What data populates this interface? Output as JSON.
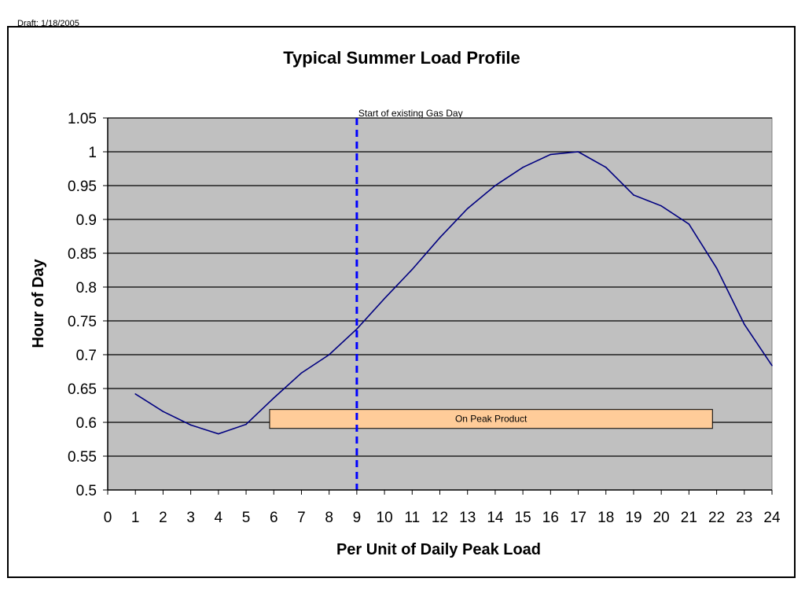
{
  "header": {
    "draft_label": "Draft: 1/18/2005"
  },
  "chart_data": {
    "type": "line",
    "title": "Typical Summer Load Profile",
    "xlabel": "Per Unit of Daily Peak Load",
    "ylabel": "Hour of Day",
    "xlim": [
      0,
      24
    ],
    "ylim": [
      0.5,
      1.05
    ],
    "x_ticks": [
      0,
      1,
      2,
      3,
      4,
      5,
      6,
      7,
      8,
      9,
      10,
      11,
      12,
      13,
      14,
      15,
      16,
      17,
      18,
      19,
      20,
      21,
      22,
      23,
      24
    ],
    "y_ticks": [
      0.5,
      0.55,
      0.6,
      0.65,
      0.7,
      0.75,
      0.8,
      0.85,
      0.9,
      0.95,
      1,
      1.05
    ],
    "y_tick_labels": [
      "0.5",
      "0.55",
      "0.6",
      "0.65",
      "0.7",
      "0.75",
      "0.8",
      "0.85",
      "0.9",
      "0.95",
      "1",
      "1.05"
    ],
    "grid": true,
    "plot_background": "#c0c0c0",
    "series": [
      {
        "color": "#000080",
        "x": [
          1,
          2,
          3,
          4,
          5,
          6,
          7,
          8,
          9,
          10,
          11,
          12,
          13,
          14,
          15,
          16,
          17,
          18,
          19,
          20,
          21,
          22,
          23,
          24
        ],
        "y": [
          0.642,
          0.616,
          0.596,
          0.583,
          0.597,
          0.636,
          0.673,
          0.7,
          0.738,
          0.783,
          0.826,
          0.873,
          0.916,
          0.95,
          0.977,
          0.996,
          1.0,
          0.977,
          0.936,
          0.92,
          0.893,
          0.828,
          0.745,
          0.684
        ]
      }
    ],
    "annotations": {
      "gas_day": {
        "label": "Start of existing Gas Day",
        "x": 9,
        "color": "#0000ff"
      },
      "on_peak": {
        "label": "On Peak Product",
        "x_start": 5.85,
        "x_end": 21.85,
        "y_low": 0.591,
        "y_high": 0.619,
        "color": "#ffcc99"
      }
    }
  }
}
